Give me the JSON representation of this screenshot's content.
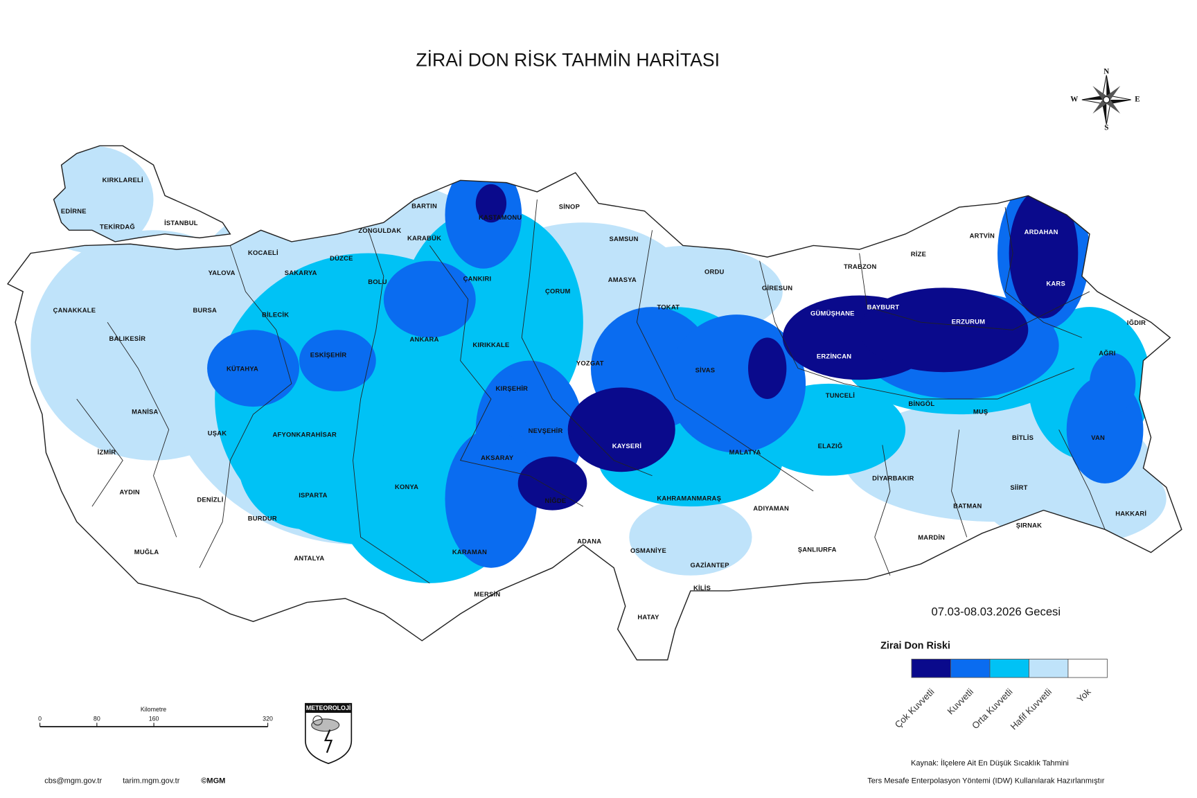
{
  "title": "ZİRAİ DON RİSK TAHMİN HARİTASI",
  "date": "07.03-08.03.2026 Gecesi",
  "legend": {
    "title": "Zirai Don Riski",
    "items": [
      {
        "label": "Çok Kuvvetli",
        "color": "#0a0a8c"
      },
      {
        "label": "Kuvvetli",
        "color": "#0a6cf0"
      },
      {
        "label": "Orta Kuvvetli",
        "color": "#00c2f5"
      },
      {
        "label": "Hafif Kuvvetli",
        "color": "#bfe3fa"
      },
      {
        "label": "Yok",
        "color": "#ffffff"
      }
    ]
  },
  "compass": {
    "n": "N",
    "e": "E",
    "s": "S",
    "w": "W"
  },
  "scale_bar": {
    "unit": "Kilometre",
    "ticks": [
      0,
      80,
      160,
      320
    ]
  },
  "logo": "METEOROLOJİ",
  "source": [
    "Kaynak: İlçelere Ait En Düşük Sıcaklık Tahmini",
    "Ters Mesafe Enterpolasyon Yöntemi (IDW) Kullanılarak Hazırlanmıştır"
  ],
  "footer": [
    "cbs@mgm.gov.tr",
    "tarim.mgm.gov.tr",
    "©MGM"
  ],
  "provinces": [
    "KIRKLARELİ",
    "EDİRNE",
    "TEKİRDAĞ",
    "İSTANBUL",
    "KOCAELİ",
    "YALOVA",
    "SAKARYA",
    "DÜZCE",
    "ZONGULDAK",
    "BARTIN",
    "KARABÜK",
    "KASTAMONU",
    "SİNOP",
    "SAMSUN",
    "ÇANAKKALE",
    "BURSA",
    "BİLECİK",
    "BOLU",
    "ÇANKIRI",
    "ÇORUM",
    "AMASYA",
    "TOKAT",
    "ORDU",
    "GİRESUN",
    "TRABZON",
    "RİZE",
    "ARTVİN",
    "ARDAHAN",
    "KARS",
    "IĞDIR",
    "BALIKESİR",
    "ANKARA",
    "KIRIKKALE",
    "GÜMÜŞHANE",
    "BAYBURT",
    "ERZURUM",
    "AĞRI",
    "KÜTAHYA",
    "ESKİŞEHİR",
    "YOZGAT",
    "SİVAS",
    "ERZİNCAN",
    "KIRŞEHİR",
    "TUNCELİ",
    "BİNGÖL",
    "MUŞ",
    "MANİSA",
    "UŞAK",
    "AFYONKARAHİSAR",
    "NEVŞEHİR",
    "KAYSERİ",
    "ELAZIĞ",
    "MALATYA",
    "BİTLİS",
    "VAN",
    "İZMİR",
    "AKSARAY",
    "AYDIN",
    "DENİZLİ",
    "ISPARTA",
    "KONYA",
    "NİĞDE",
    "KAHRAMANMARAŞ",
    "DİYARBAKIR",
    "SİİRT",
    "ADIYAMAN",
    "BATMAN",
    "HAKKARİ",
    "BURDUR",
    "ŞIRNAK",
    "MUĞLA",
    "KARAMAN",
    "ADANA",
    "OSMANİYE",
    "ŞANLIURFA",
    "MARDİN",
    "ANTALYA",
    "GAZİANTEP",
    "KİLİS",
    "MERSİN",
    "HATAY"
  ]
}
